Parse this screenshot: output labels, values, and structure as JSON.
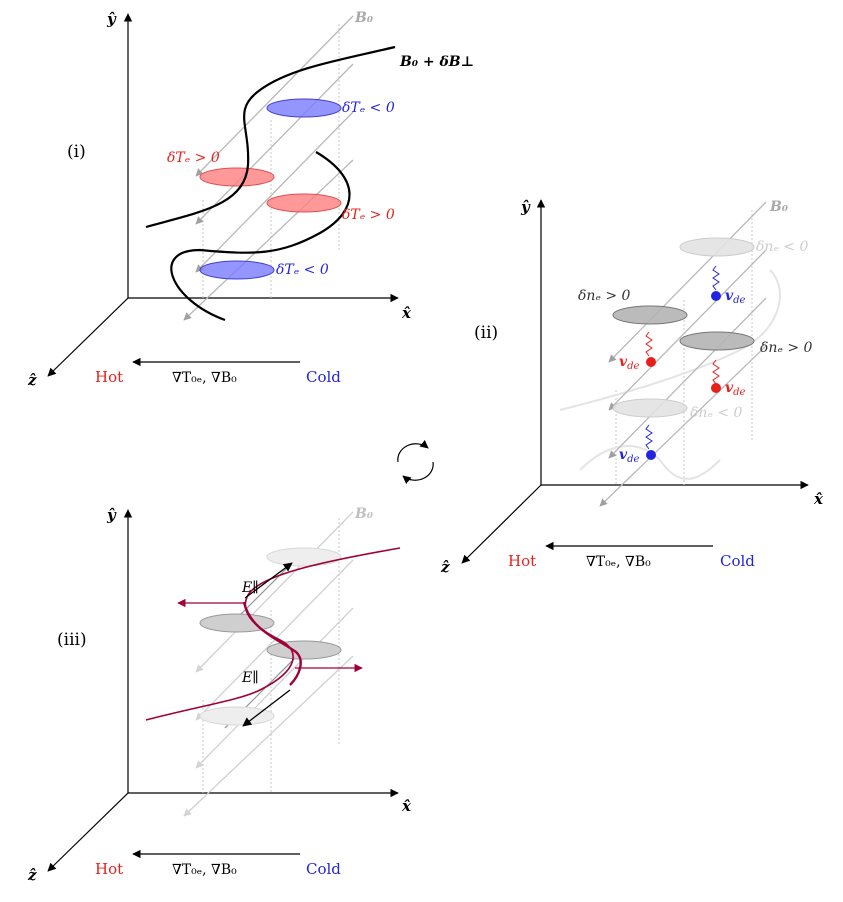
{
  "panels": {
    "i": {
      "label": "(i)",
      "axis_y": "ŷ",
      "axis_x": "x̂",
      "axis_z": "ẑ",
      "field": "B₀",
      "perturbed_field": "B₀ + δB⊥",
      "temp_pos_1": "δTₑ > 0",
      "temp_pos_2": "δTₑ > 0",
      "temp_neg_1": "δTₑ < 0",
      "temp_neg_2": "δTₑ < 0",
      "hot": "Hot",
      "cold": "Cold",
      "gradient": "∇T₀ₑ, ∇B₀"
    },
    "ii": {
      "label": "(ii)",
      "axis_y": "ŷ",
      "axis_x": "x̂",
      "axis_z": "ẑ",
      "field": "B₀",
      "dens_pos_1": "δnₑ > 0",
      "dens_pos_2": "δnₑ > 0",
      "dens_neg_1": "δnₑ < 0",
      "dens_neg_2": "δnₑ < 0",
      "drift_1": "v",
      "drift_sub": "de",
      "hot": "Hot",
      "cold": "Cold",
      "gradient": "∇T₀ₑ, ∇B₀"
    },
    "iii": {
      "label": "(iii)",
      "axis_y": "ŷ",
      "axis_x": "x̂",
      "axis_z": "ẑ",
      "field": "B₀",
      "efield_1": "E∥",
      "efield_2": "E∥",
      "hot": "Hot",
      "cold": "Cold",
      "gradient": "∇T₀ₑ, ∇B₀"
    }
  },
  "colors": {
    "hot": "#e8201c",
    "cold": "#2424e0",
    "warm_fill": "#ff8080",
    "cool_fill": "#7b7bff",
    "field_line": "#a0a0a0",
    "faded_field": "#d0d0d0",
    "perturb": "#a0003a"
  },
  "cycle_icon": "cycle-arrows-icon"
}
